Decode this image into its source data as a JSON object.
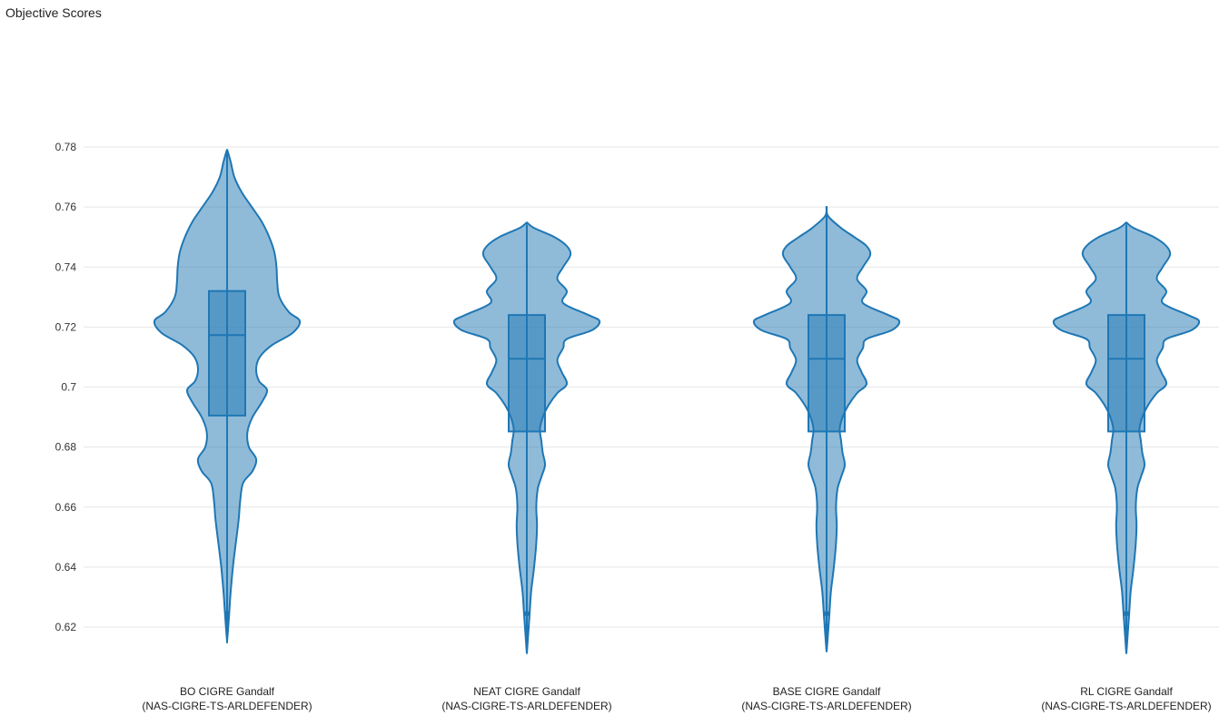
{
  "title": "Objective Scores",
  "chart_data": {
    "type": "violin",
    "title": "Objective Scores",
    "xlabel": "",
    "ylabel": "",
    "ylim": [
      0.61,
      0.782
    ],
    "yticks": [
      0.62,
      0.64,
      0.66,
      0.68,
      0.7,
      0.72,
      0.74,
      0.76,
      0.78
    ],
    "ytick_labels": [
      "0.62",
      "0.64",
      "0.66",
      "0.68",
      "0.7",
      "0.72",
      "0.74",
      "0.76",
      "0.78"
    ],
    "grid": true,
    "colors": {
      "fill": "#1f77b4",
      "line": "#1f77b4",
      "grid": "#e6e6e6"
    },
    "categories": [
      {
        "line1": "BO CIGRE Gandalf",
        "line2": "(NAS-CIGRE-TS-ARLDEFENDER)"
      },
      {
        "line1": "NEAT CIGRE Gandalf",
        "line2": "(NAS-CIGRE-TS-ARLDEFENDER)"
      },
      {
        "line1": "BASE CIGRE Gandalf",
        "line2": "(NAS-CIGRE-TS-ARLDEFENDER)"
      },
      {
        "line1": "RL CIGRE Gandalf",
        "line2": "(NAS-CIGRE-TS-ARLDEFENDER)"
      }
    ],
    "series": [
      {
        "q1": 0.6905,
        "median": 0.7173,
        "q3": 0.732,
        "whisker_low": 0.6245,
        "whisker_high": 0.77,
        "outliers": [],
        "range": [
          0.616,
          0.779
        ],
        "density": [
          [
            0.779,
            0.003
          ],
          [
            0.775,
            0.05
          ],
          [
            0.77,
            0.1
          ],
          [
            0.765,
            0.2
          ],
          [
            0.76,
            0.34
          ],
          [
            0.755,
            0.48
          ],
          [
            0.75,
            0.58
          ],
          [
            0.745,
            0.65
          ],
          [
            0.74,
            0.68
          ],
          [
            0.735,
            0.69
          ],
          [
            0.73,
            0.72
          ],
          [
            0.725,
            0.85
          ],
          [
            0.722,
            1.0
          ],
          [
            0.718,
            0.9
          ],
          [
            0.714,
            0.62
          ],
          [
            0.71,
            0.45
          ],
          [
            0.706,
            0.4
          ],
          [
            0.702,
            0.44
          ],
          [
            0.699,
            0.55
          ],
          [
            0.695,
            0.48
          ],
          [
            0.69,
            0.35
          ],
          [
            0.685,
            0.28
          ],
          [
            0.68,
            0.3
          ],
          [
            0.676,
            0.4
          ],
          [
            0.672,
            0.35
          ],
          [
            0.668,
            0.22
          ],
          [
            0.662,
            0.18
          ],
          [
            0.656,
            0.16
          ],
          [
            0.648,
            0.12
          ],
          [
            0.64,
            0.08
          ],
          [
            0.632,
            0.05
          ],
          [
            0.625,
            0.03
          ],
          [
            0.616,
            0.003
          ]
        ]
      },
      {
        "q1": 0.6852,
        "median": 0.7094,
        "q3": 0.724,
        "whisker_low": 0.6245,
        "whisker_high": 0.746,
        "outliers": [
          0.6198
        ],
        "range": [
          0.612,
          0.7548
        ],
        "density": [
          [
            0.7548,
            0.003
          ],
          [
            0.753,
            0.1
          ],
          [
            0.75,
            0.38
          ],
          [
            0.747,
            0.55
          ],
          [
            0.744,
            0.6
          ],
          [
            0.74,
            0.5
          ],
          [
            0.736,
            0.42
          ],
          [
            0.732,
            0.55
          ],
          [
            0.728,
            0.5
          ],
          [
            0.724,
            0.85
          ],
          [
            0.722,
            1.0
          ],
          [
            0.719,
            0.9
          ],
          [
            0.716,
            0.55
          ],
          [
            0.713,
            0.5
          ],
          [
            0.709,
            0.42
          ],
          [
            0.705,
            0.48
          ],
          [
            0.701,
            0.55
          ],
          [
            0.698,
            0.42
          ],
          [
            0.694,
            0.3
          ],
          [
            0.69,
            0.22
          ],
          [
            0.686,
            0.18
          ],
          [
            0.682,
            0.2
          ],
          [
            0.678,
            0.22
          ],
          [
            0.674,
            0.25
          ],
          [
            0.67,
            0.2
          ],
          [
            0.666,
            0.15
          ],
          [
            0.66,
            0.13
          ],
          [
            0.654,
            0.14
          ],
          [
            0.648,
            0.13
          ],
          [
            0.64,
            0.1
          ],
          [
            0.632,
            0.06
          ],
          [
            0.625,
            0.04
          ],
          [
            0.618,
            0.02
          ],
          [
            0.612,
            0.003
          ]
        ]
      },
      {
        "q1": 0.6852,
        "median": 0.7094,
        "q3": 0.724,
        "whisker_low": 0.6245,
        "whisker_high": 0.752,
        "outliers": [
          0.6202
        ],
        "range": [
          0.6125,
          0.76
        ],
        "density": [
          [
            0.76,
            0.003
          ],
          [
            0.757,
            0.02
          ],
          [
            0.753,
            0.2
          ],
          [
            0.75,
            0.38
          ],
          [
            0.747,
            0.55
          ],
          [
            0.744,
            0.6
          ],
          [
            0.74,
            0.5
          ],
          [
            0.736,
            0.42
          ],
          [
            0.732,
            0.55
          ],
          [
            0.728,
            0.5
          ],
          [
            0.724,
            0.85
          ],
          [
            0.722,
            1.0
          ],
          [
            0.719,
            0.9
          ],
          [
            0.716,
            0.55
          ],
          [
            0.713,
            0.5
          ],
          [
            0.709,
            0.42
          ],
          [
            0.705,
            0.48
          ],
          [
            0.701,
            0.55
          ],
          [
            0.698,
            0.42
          ],
          [
            0.694,
            0.3
          ],
          [
            0.69,
            0.22
          ],
          [
            0.686,
            0.18
          ],
          [
            0.682,
            0.2
          ],
          [
            0.678,
            0.22
          ],
          [
            0.674,
            0.25
          ],
          [
            0.67,
            0.2
          ],
          [
            0.666,
            0.15
          ],
          [
            0.66,
            0.13
          ],
          [
            0.654,
            0.14
          ],
          [
            0.648,
            0.13
          ],
          [
            0.64,
            0.1
          ],
          [
            0.632,
            0.06
          ],
          [
            0.625,
            0.04
          ],
          [
            0.618,
            0.02
          ],
          [
            0.6125,
            0.003
          ]
        ]
      },
      {
        "q1": 0.6852,
        "median": 0.7094,
        "q3": 0.724,
        "whisker_low": 0.6245,
        "whisker_high": 0.746,
        "outliers": [
          0.6197
        ],
        "range": [
          0.612,
          0.7548
        ],
        "density": [
          [
            0.7548,
            0.003
          ],
          [
            0.753,
            0.1
          ],
          [
            0.75,
            0.38
          ],
          [
            0.747,
            0.55
          ],
          [
            0.744,
            0.6
          ],
          [
            0.74,
            0.5
          ],
          [
            0.736,
            0.42
          ],
          [
            0.732,
            0.55
          ],
          [
            0.728,
            0.5
          ],
          [
            0.724,
            0.85
          ],
          [
            0.722,
            1.0
          ],
          [
            0.719,
            0.9
          ],
          [
            0.716,
            0.55
          ],
          [
            0.713,
            0.5
          ],
          [
            0.709,
            0.42
          ],
          [
            0.705,
            0.48
          ],
          [
            0.701,
            0.55
          ],
          [
            0.698,
            0.42
          ],
          [
            0.694,
            0.3
          ],
          [
            0.69,
            0.22
          ],
          [
            0.686,
            0.18
          ],
          [
            0.682,
            0.2
          ],
          [
            0.678,
            0.22
          ],
          [
            0.674,
            0.25
          ],
          [
            0.67,
            0.2
          ],
          [
            0.666,
            0.15
          ],
          [
            0.66,
            0.13
          ],
          [
            0.654,
            0.14
          ],
          [
            0.648,
            0.13
          ],
          [
            0.64,
            0.1
          ],
          [
            0.632,
            0.06
          ],
          [
            0.625,
            0.04
          ],
          [
            0.618,
            0.02
          ],
          [
            0.612,
            0.003
          ]
        ]
      }
    ]
  }
}
